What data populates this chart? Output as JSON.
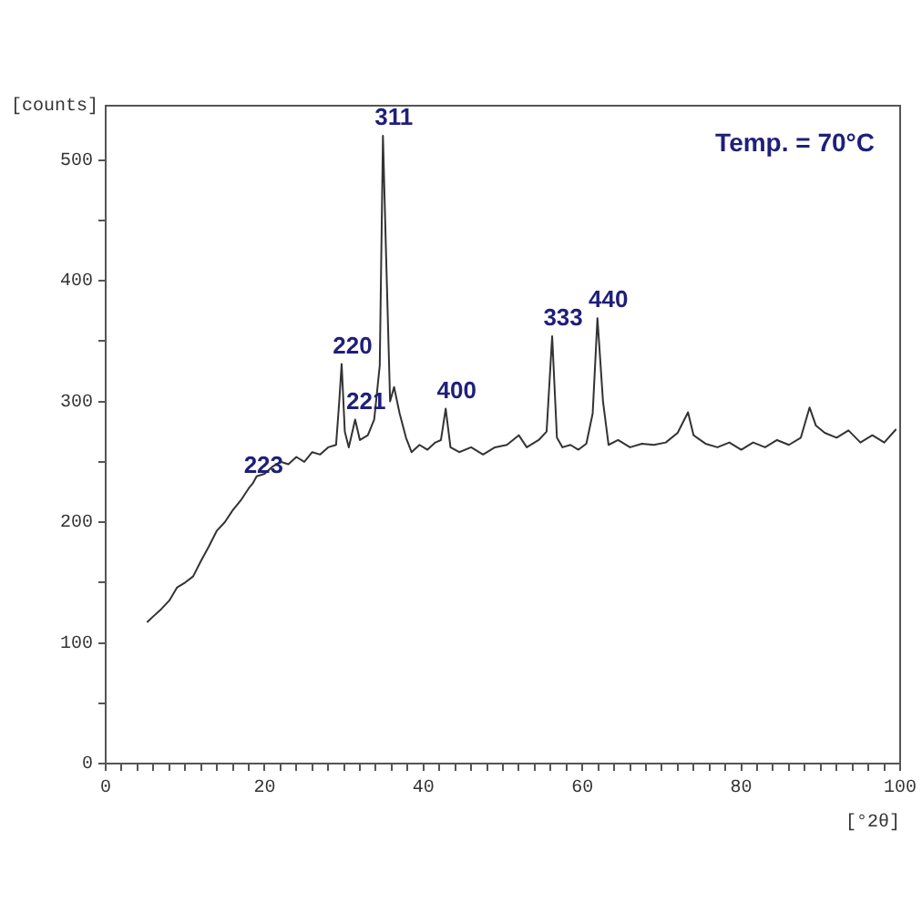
{
  "chart_data": {
    "type": "line",
    "xlabel": "[°2θ]",
    "ylabel": "[counts]",
    "x": [
      5.2,
      6,
      7,
      8,
      9,
      10,
      11,
      12,
      13,
      14,
      15,
      16,
      17,
      18,
      18.5,
      19,
      20,
      21,
      22,
      23,
      24,
      25,
      26,
      27,
      28,
      29,
      29.4,
      29.7,
      30.1,
      30.6,
      31.4,
      32,
      33,
      33.8,
      34.5,
      34.9,
      35.3,
      35.8,
      36.3,
      37,
      37.8,
      38.5,
      39.5,
      40.5,
      41.5,
      42.2,
      42.8,
      43.4,
      44.5,
      46,
      47.5,
      49,
      50.5,
      52,
      53,
      54.5,
      55.5,
      56.2,
      56.8,
      57.5,
      58.5,
      59.5,
      60.5,
      61.3,
      61.9,
      62.6,
      63.3,
      64.5,
      66,
      67.5,
      69,
      70.5,
      72,
      73.3,
      74,
      75.5,
      77,
      78.5,
      80,
      81.5,
      83,
      84.5,
      86,
      87.5,
      88.6,
      89.4,
      90.5,
      92,
      93.5,
      95,
      96.5,
      98,
      99.5
    ],
    "series": [
      {
        "color": "#333333",
        "values": [
          117,
          122,
          128,
          135,
          146,
          150,
          155,
          168,
          180,
          193,
          200,
          210,
          218,
          228,
          232,
          238,
          240,
          246,
          250,
          248,
          254,
          250,
          258,
          256,
          262,
          264,
          300,
          331,
          275,
          262,
          285,
          268,
          272,
          285,
          330,
          520,
          420,
          300,
          312,
          290,
          270,
          258,
          264,
          260,
          266,
          268,
          294,
          262,
          258,
          262,
          256,
          262,
          264,
          272,
          262,
          268,
          275,
          354,
          270,
          262,
          264,
          260,
          265,
          290,
          369,
          300,
          264,
          268,
          262,
          265,
          264,
          266,
          274,
          291,
          272,
          265,
          262,
          266,
          260,
          266,
          262,
          268,
          264,
          270,
          295,
          280,
          274,
          270,
          276,
          266,
          272,
          266,
          277
        ]
      }
    ],
    "xlim": [
      0,
      100
    ],
    "xticks": [
      0,
      {
        "value": 2,
        "label": null
      },
      {
        "value": 4,
        "label": null
      },
      {
        "value": 6,
        "label": null
      },
      {
        "value": 8,
        "label": null
      },
      {
        "value": 10,
        "label": null
      },
      {
        "value": 12,
        "label": null
      },
      {
        "value": 14,
        "label": null
      },
      {
        "value": 16,
        "label": null
      },
      {
        "value": 18,
        "label": null
      },
      20,
      {
        "value": 22,
        "label": null
      },
      {
        "value": 24,
        "label": null
      },
      {
        "value": 26,
        "label": null
      },
      {
        "value": 28,
        "label": null
      },
      {
        "value": 30,
        "label": null
      },
      {
        "value": 32,
        "label": null
      },
      {
        "value": 34,
        "label": null
      },
      {
        "value": 36,
        "label": null
      },
      {
        "value": 38,
        "label": null
      },
      40,
      {
        "value": 42,
        "label": null
      },
      {
        "value": 44,
        "label": null
      },
      {
        "value": 46,
        "label": null
      },
      {
        "value": 48,
        "label": null
      },
      {
        "value": 50,
        "label": null
      },
      {
        "value": 52,
        "label": null
      },
      {
        "value": 54,
        "label": null
      },
      {
        "value": 56,
        "label": null
      },
      {
        "value": 58,
        "label": null
      },
      60,
      {
        "value": 62,
        "label": null
      },
      {
        "value": 64,
        "label": null
      },
      {
        "value": 66,
        "label": null
      },
      {
        "value": 68,
        "label": null
      },
      {
        "value": 70,
        "label": null
      },
      {
        "value": 72,
        "label": null
      },
      {
        "value": 74,
        "label": null
      },
      {
        "value": 76,
        "label": null
      },
      {
        "value": 78,
        "label": null
      },
      80,
      {
        "value": 82,
        "label": null
      },
      {
        "value": 84,
        "label": null
      },
      {
        "value": 86,
        "label": null
      },
      {
        "value": 88,
        "label": null
      },
      {
        "value": 90,
        "label": null
      },
      {
        "value": 92,
        "label": null
      },
      {
        "value": 94,
        "label": null
      },
      {
        "value": 96,
        "label": null
      },
      {
        "value": 98,
        "label": null
      },
      100
    ],
    "ylim": [
      0,
      545
    ],
    "yticks": [
      0,
      {
        "value": 50,
        "label": null
      },
      100,
      {
        "value": 150,
        "label": null
      },
      200,
      {
        "value": 250,
        "label": null
      },
      300,
      {
        "value": 350,
        "label": null
      },
      400,
      {
        "value": 450,
        "label": null
      },
      500
    ],
    "grid": false,
    "legend": false,
    "marker": "none",
    "line_style": "solid",
    "annotations": [
      "Temp. = 70°C",
      {
        "text": "223",
        "x": 18.5,
        "y": 232
      },
      {
        "text": "220",
        "x": 29.7,
        "y": 331
      },
      {
        "text": "221",
        "x": 31.4,
        "y": 285
      },
      {
        "text": "311",
        "x": 34.9,
        "y": 520
      },
      {
        "text": "400",
        "x": 42.8,
        "y": 294
      },
      {
        "text": "333",
        "x": 56.2,
        "y": 354
      },
      {
        "text": "440",
        "x": 61.9,
        "y": 369
      }
    ]
  }
}
